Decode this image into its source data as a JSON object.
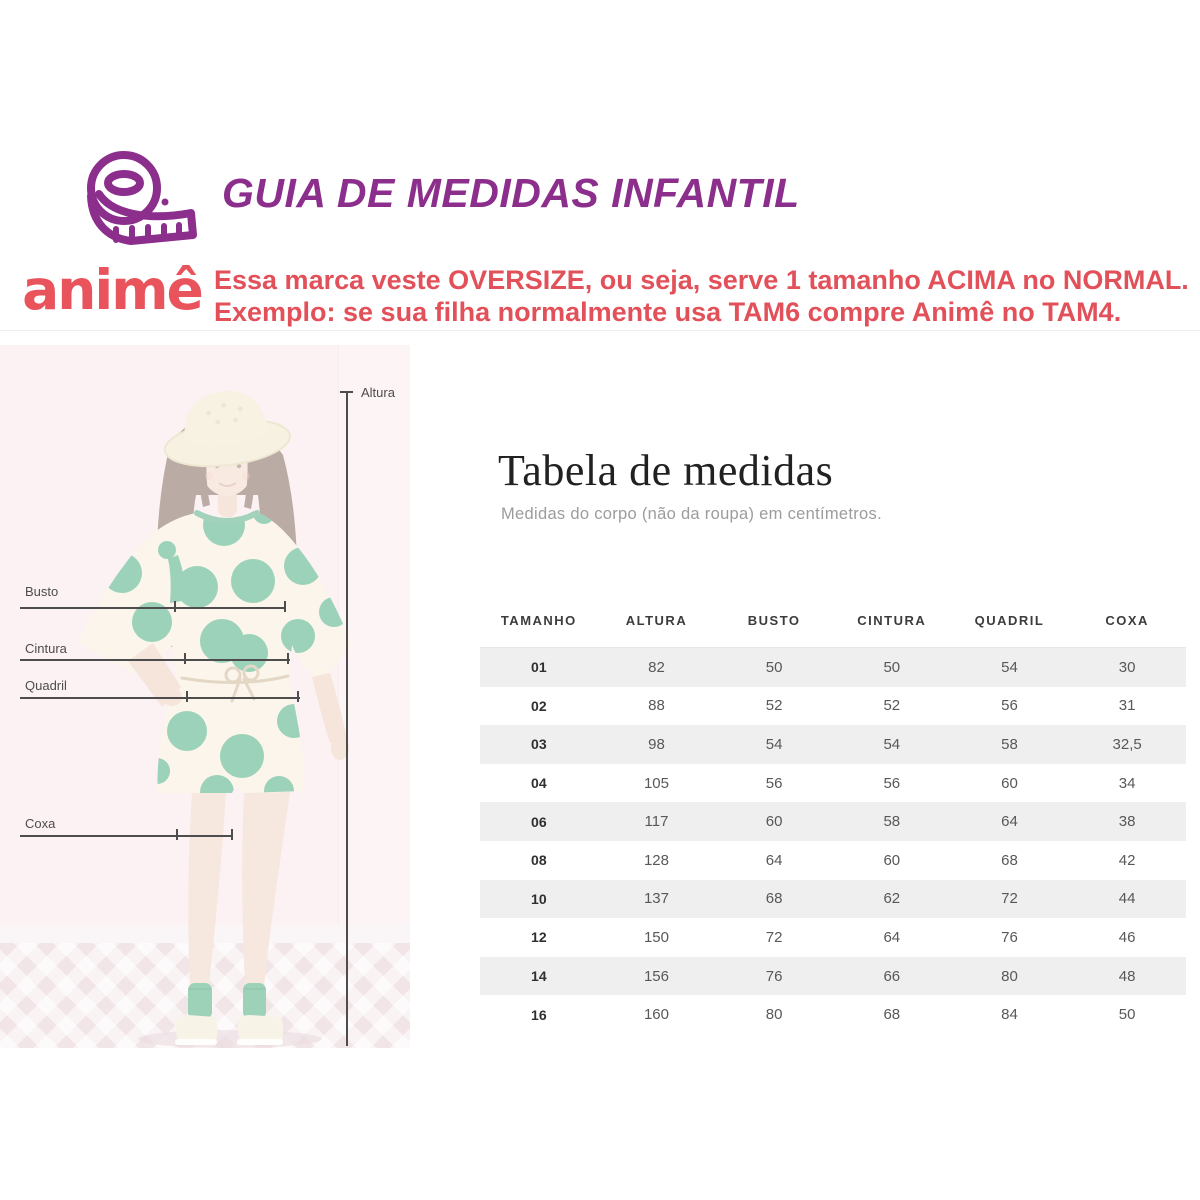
{
  "header": {
    "title": "GUIA DE MEDIDAS INFANTIL",
    "icon": "measuring-tape",
    "purple": "#8b2e8c"
  },
  "brand": {
    "logo_text": "animê",
    "logo_color": "#e9545c",
    "note_line1": "Essa marca veste OVERSIZE, ou seja, serve 1 tamanho ACIMA no NORMAL.",
    "note_line2": "Exemplo: se sua filha normalmente usa TAM6 compre Animê no TAM4.",
    "note_color": "#e25059"
  },
  "figure": {
    "altura_label": "Altura",
    "busto_label": "Busto",
    "cintura_label": "Cintura",
    "quadril_label": "Quadril",
    "coxa_label": "Coxa"
  },
  "size_table": {
    "title": "Tabela de medidas",
    "subtitle": "Medidas do corpo (não da roupa) em centímetros.",
    "columns": [
      "TAMANHO",
      "ALTURA",
      "BUSTO",
      "CINTURA",
      "QUADRIL",
      "COXA"
    ],
    "rows": [
      [
        "01",
        "82",
        "50",
        "50",
        "54",
        "30"
      ],
      [
        "02",
        "88",
        "52",
        "52",
        "56",
        "31"
      ],
      [
        "03",
        "98",
        "54",
        "54",
        "58",
        "32,5"
      ],
      [
        "04",
        "105",
        "56",
        "56",
        "60",
        "34"
      ],
      [
        "06",
        "117",
        "60",
        "58",
        "64",
        "38"
      ],
      [
        "08",
        "128",
        "64",
        "60",
        "68",
        "42"
      ],
      [
        "10",
        "137",
        "68",
        "62",
        "72",
        "44"
      ],
      [
        "12",
        "150",
        "72",
        "64",
        "76",
        "46"
      ],
      [
        "14",
        "156",
        "76",
        "66",
        "80",
        "48"
      ],
      [
        "16",
        "160",
        "80",
        "68",
        "84",
        "50"
      ]
    ],
    "stripe_color": "#efefef"
  }
}
